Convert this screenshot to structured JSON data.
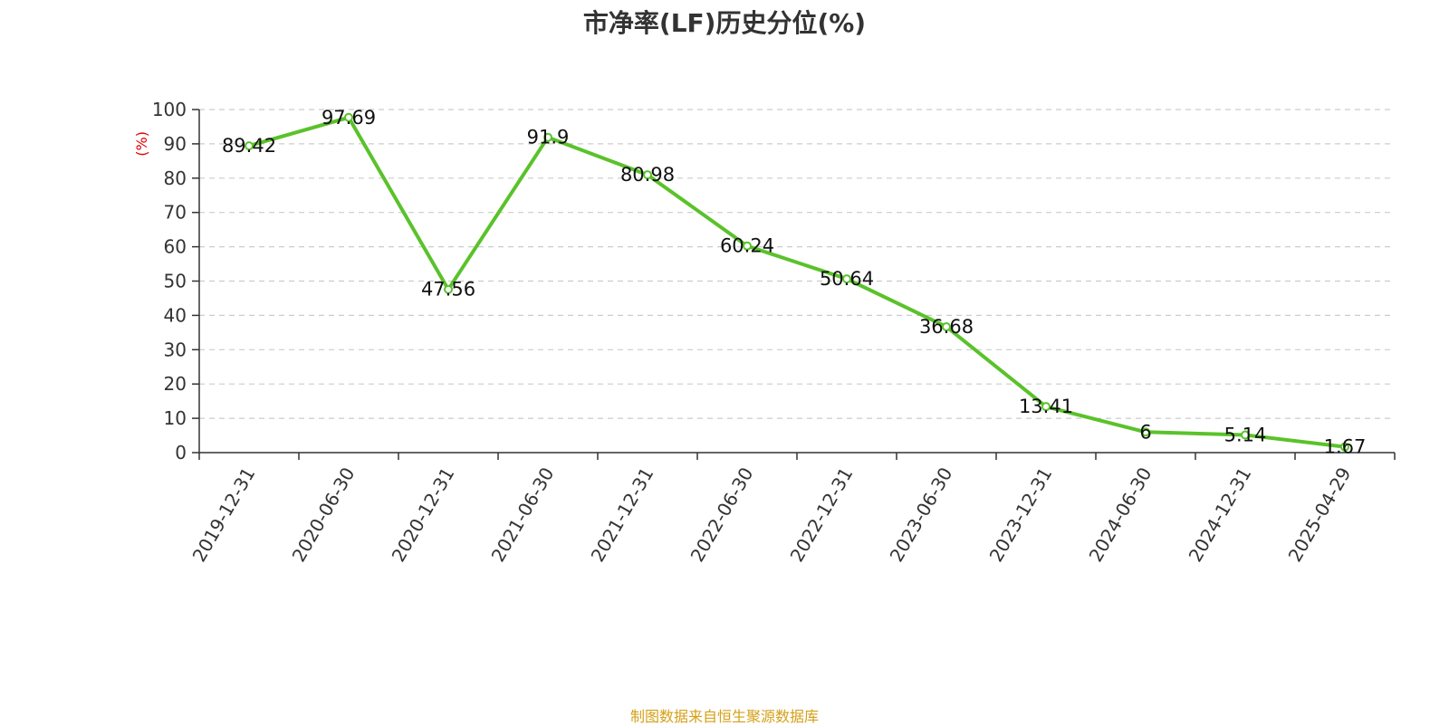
{
  "chart_data": {
    "type": "line",
    "title": "市净率(LF)历史分位(%)",
    "ylabel": "(%)",
    "xlabel": "",
    "categories": [
      "2019-12-31",
      "2020-06-30",
      "2020-12-31",
      "2021-06-30",
      "2021-12-31",
      "2022-06-30",
      "2022-12-31",
      "2023-06-30",
      "2023-12-31",
      "2024-06-30",
      "2024-12-31",
      "2025-04-29"
    ],
    "series": [
      {
        "values": [
          89.42,
          97.69,
          47.56,
          91.9,
          80.98,
          60.24,
          50.64,
          36.68,
          13.41,
          6,
          5.14,
          1.67
        ],
        "labels": [
          "89.42",
          "97.69",
          "47.56",
          "91.9",
          "80.98",
          "60.24",
          "50.64",
          "36.68",
          "13.41",
          "6",
          "5.14",
          "1.67"
        ]
      }
    ],
    "ylim": [
      0,
      100
    ],
    "yticks": [
      "0",
      "10",
      "20",
      "30",
      "40",
      "50",
      "60",
      "70",
      "80",
      "90",
      "100"
    ],
    "grid": true
  },
  "source": "制图数据来自恒生聚源数据库",
  "colors": {
    "line": "#5ac22a",
    "axis": "#333333",
    "grid": "#cccccc",
    "unit": "#e00000",
    "source": "#d4a017",
    "title": "#333333"
  }
}
